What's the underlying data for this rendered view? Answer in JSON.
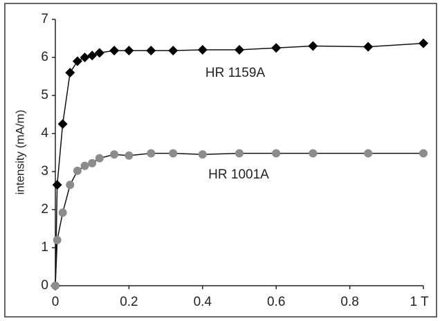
{
  "chart_data": {
    "type": "line",
    "y_label": "intensity (mA/m)",
    "annotations": [
      "HR 1159A",
      "HR 1001A"
    ],
    "series": [
      {
        "name": "HR 1159A",
        "color": "#000000",
        "marker": "diamond",
        "x": [
          0,
          0.005,
          0.02,
          0.04,
          0.06,
          0.08,
          0.1,
          0.12,
          0.16,
          0.2,
          0.26,
          0.32,
          0.4,
          0.5,
          0.6,
          0.7,
          0.85,
          1
        ],
        "values": [
          0,
          2.65,
          4.25,
          5.6,
          5.9,
          6.0,
          6.05,
          6.12,
          6.18,
          6.18,
          6.18,
          6.18,
          6.2,
          6.2,
          6.25,
          6.3,
          6.28,
          6.37
        ]
      },
      {
        "name": "HR 1001A",
        "color": "#8c8c8c",
        "marker": "circle",
        "x": [
          0,
          0.005,
          0.02,
          0.04,
          0.06,
          0.08,
          0.1,
          0.12,
          0.16,
          0.2,
          0.26,
          0.32,
          0.4,
          0.5,
          0.6,
          0.7,
          0.85,
          1
        ],
        "values": [
          0,
          1.2,
          1.92,
          2.65,
          3.02,
          3.15,
          3.22,
          3.35,
          3.45,
          3.42,
          3.48,
          3.48,
          3.45,
          3.48,
          3.48,
          3.48,
          3.48,
          3.48
        ]
      }
    ],
    "xlim": [
      0,
      1
    ],
    "xticks": [
      0,
      0.2,
      0.4,
      0.6,
      0.8,
      {
        "value": 1,
        "label": "1 T"
      }
    ],
    "ylim": [
      0,
      7
    ],
    "yticks": [
      0,
      1,
      2,
      3,
      4,
      5,
      6,
      7
    ],
    "grid": false
  }
}
